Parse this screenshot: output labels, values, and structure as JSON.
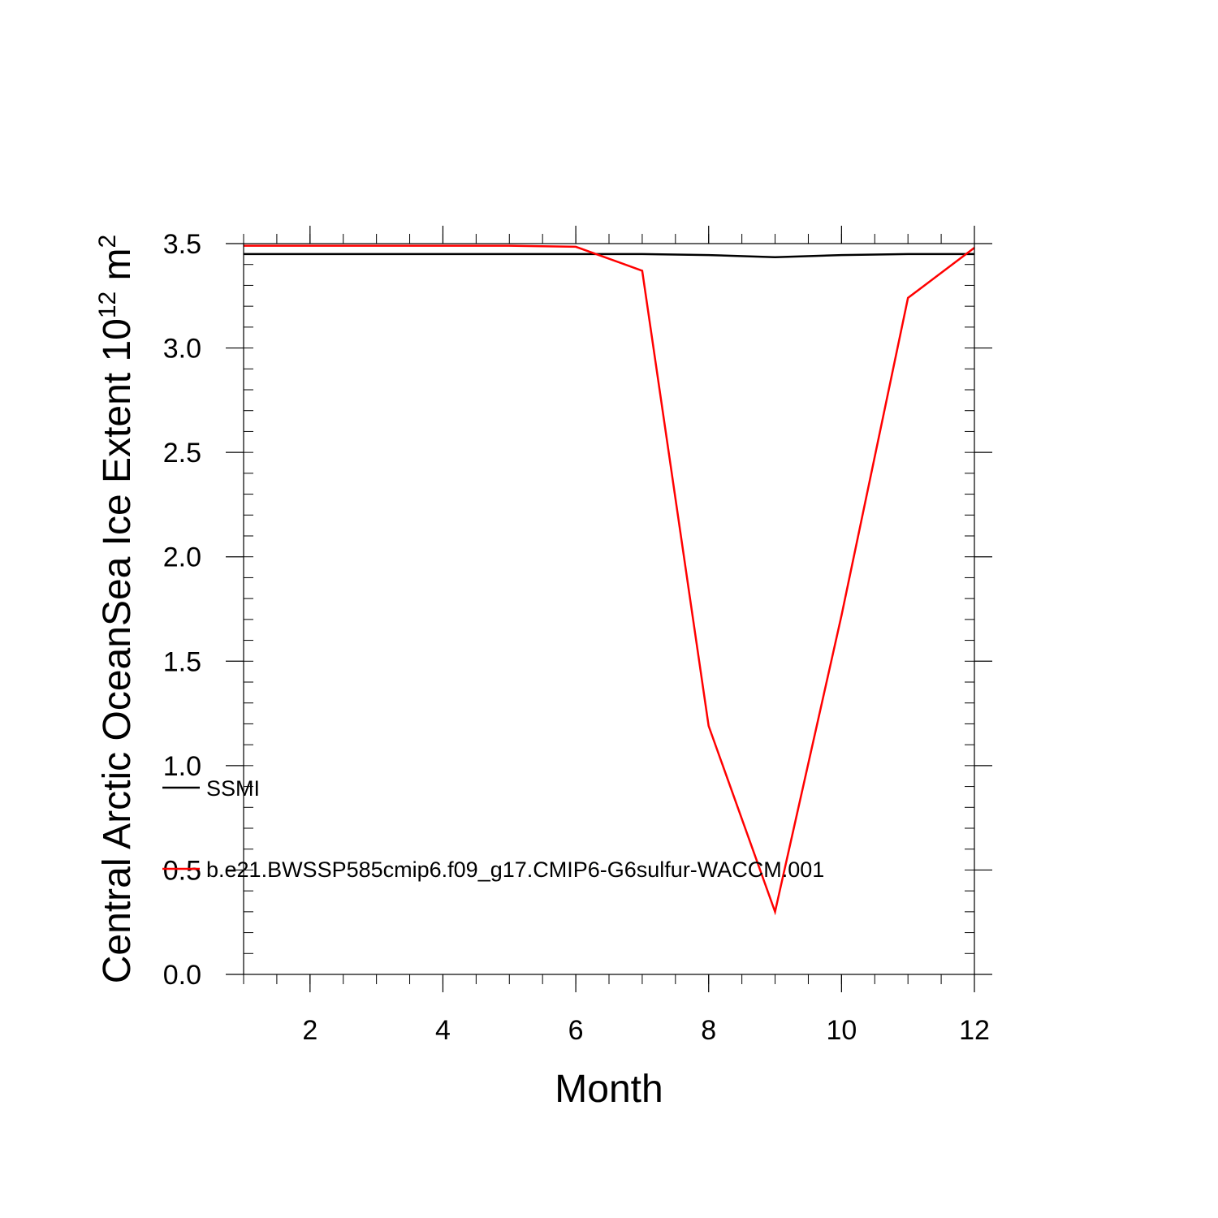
{
  "chart_data": {
    "type": "line",
    "xlabel": "Month",
    "ylabel": {
      "prefix": "Central Arctic OceanSea Ice Extent 10",
      "sup1": "12",
      "mid": " m",
      "sup2": "2"
    },
    "xlim": [
      1,
      12
    ],
    "ylim": [
      0,
      3.5
    ],
    "xticks": [
      2,
      4,
      6,
      8,
      10,
      12
    ],
    "xtick_labels": [
      "2",
      "4",
      "6",
      "8",
      "10",
      "12"
    ],
    "yticks": [
      0,
      0.5,
      1,
      1.5,
      2,
      2.5,
      3,
      3.5
    ],
    "ytick_labels": [
      "0.0",
      "0.5",
      "1.0",
      "1.5",
      "2.0",
      "2.5",
      "3.0",
      "3.5"
    ],
    "x": [
      1,
      2,
      3,
      4,
      5,
      6,
      7,
      8,
      9,
      10,
      11,
      12
    ],
    "series": [
      {
        "name": "SSMI",
        "color": "#000000",
        "values": [
          3.45,
          3.45,
          3.45,
          3.45,
          3.45,
          3.45,
          3.45,
          3.445,
          3.435,
          3.445,
          3.45,
          3.45
        ]
      },
      {
        "name": "b.e21.BWSSP585cmip6.f09_g17.CMIP6-G6sulfur-WACCM.001",
        "color": "#ff0000",
        "values": [
          3.49,
          3.49,
          3.49,
          3.49,
          3.49,
          3.485,
          3.37,
          1.19,
          0.3,
          1.72,
          3.24,
          3.48
        ]
      }
    ],
    "grid": false,
    "legend_position": "inside-left"
  }
}
